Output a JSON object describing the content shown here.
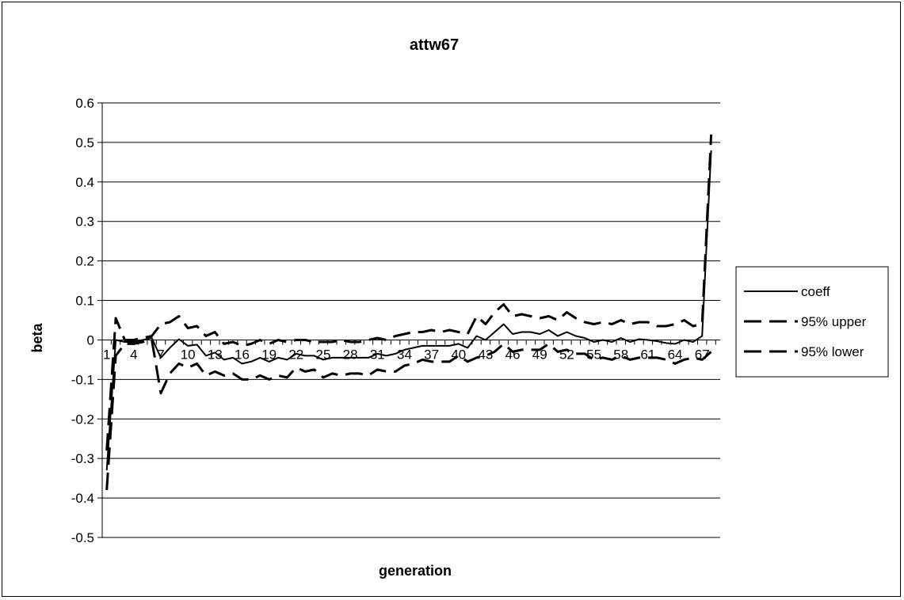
{
  "chart_data": {
    "type": "line",
    "title": "attw67",
    "xlabel": "generation",
    "ylabel": "beta",
    "ylim": [
      -0.5,
      0.6
    ],
    "yticks": [
      -0.5,
      -0.4,
      -0.3,
      -0.2,
      -0.1,
      0,
      0.1,
      0.2,
      0.3,
      0.4,
      0.5,
      0.6
    ],
    "x_tick_labels": [
      "1",
      "4",
      "7",
      "10",
      "13",
      "16",
      "19",
      "22",
      "25",
      "28",
      "31",
      "34",
      "37",
      "40",
      "43",
      "46",
      "49",
      "52",
      "55",
      "58",
      "61",
      "64",
      "67"
    ],
    "x": [
      1,
      2,
      3,
      4,
      5,
      6,
      7,
      8,
      9,
      10,
      11,
      12,
      13,
      14,
      15,
      16,
      17,
      18,
      19,
      20,
      21,
      22,
      23,
      24,
      25,
      26,
      27,
      28,
      29,
      30,
      31,
      32,
      33,
      34,
      35,
      36,
      37,
      38,
      39,
      40,
      41,
      42,
      43,
      44,
      45,
      46,
      47,
      48,
      49,
      50,
      51,
      52,
      53,
      54,
      55,
      56,
      57,
      58,
      59,
      60,
      61,
      62,
      63,
      64,
      65,
      66,
      67,
      68
    ],
    "grid": "horizontal",
    "legend_position": "right",
    "series": [
      {
        "name": "coeff",
        "style": "solid",
        "values": [
          -0.33,
          0,
          -0.005,
          -0.005,
          0,
          0.005,
          -0.045,
          -0.02,
          0.002,
          -0.015,
          -0.012,
          -0.04,
          -0.032,
          -0.05,
          -0.045,
          -0.06,
          -0.055,
          -0.045,
          -0.055,
          -0.045,
          -0.05,
          -0.035,
          -0.04,
          -0.04,
          -0.05,
          -0.045,
          -0.045,
          -0.045,
          -0.045,
          -0.045,
          -0.035,
          -0.04,
          -0.035,
          -0.025,
          -0.02,
          -0.015,
          -0.015,
          -0.015,
          -0.015,
          -0.01,
          -0.02,
          0.01,
          0.0,
          0.02,
          0.04,
          0.015,
          0.02,
          0.02,
          0.015,
          0.025,
          0.01,
          0.02,
          0.01,
          0.005,
          -0.005,
          0.0,
          -0.005,
          0.005,
          -0.005,
          0.002,
          0.0,
          -0.003,
          -0.008,
          -0.01,
          0.0,
          -0.005,
          0.01,
          0.48
        ]
      },
      {
        "name": "95% upper",
        "style": "dashed",
        "values": [
          -0.28,
          0.055,
          0.0,
          0.0,
          0.005,
          0.01,
          0.04,
          0.045,
          0.06,
          0.03,
          0.035,
          0.01,
          0.02,
          -0.01,
          -0.005,
          -0.015,
          -0.01,
          0.0,
          -0.01,
          0.0,
          -0.005,
          0.0,
          0.0,
          -0.005,
          -0.005,
          -0.005,
          0.0,
          -0.005,
          -0.005,
          0.0,
          0.005,
          0.0,
          0.01,
          0.015,
          0.02,
          0.02,
          0.025,
          0.02,
          0.025,
          0.02,
          0.015,
          0.06,
          0.04,
          0.07,
          0.09,
          0.06,
          0.065,
          0.06,
          0.055,
          0.06,
          0.05,
          0.07,
          0.055,
          0.045,
          0.04,
          0.045,
          0.04,
          0.05,
          0.04,
          0.045,
          0.045,
          0.035,
          0.035,
          0.04,
          0.05,
          0.035,
          0.04,
          0.52
        ]
      },
      {
        "name": "95% lower",
        "style": "dashed",
        "values": [
          -0.38,
          -0.04,
          -0.01,
          -0.01,
          -0.005,
          0.0,
          -0.135,
          -0.085,
          -0.06,
          -0.07,
          -0.06,
          -0.09,
          -0.08,
          -0.09,
          -0.085,
          -0.1,
          -0.1,
          -0.09,
          -0.1,
          -0.09,
          -0.095,
          -0.07,
          -0.08,
          -0.075,
          -0.095,
          -0.085,
          -0.09,
          -0.085,
          -0.085,
          -0.09,
          -0.075,
          -0.08,
          -0.08,
          -0.065,
          -0.06,
          -0.05,
          -0.055,
          -0.055,
          -0.055,
          -0.04,
          -0.055,
          -0.045,
          -0.04,
          -0.03,
          -0.01,
          -0.03,
          -0.025,
          -0.025,
          -0.025,
          -0.01,
          -0.03,
          -0.025,
          -0.035,
          -0.035,
          -0.05,
          -0.045,
          -0.05,
          -0.04,
          -0.05,
          -0.045,
          -0.045,
          -0.045,
          -0.05,
          -0.06,
          -0.05,
          -0.045,
          -0.05,
          -0.03
        ]
      }
    ]
  }
}
